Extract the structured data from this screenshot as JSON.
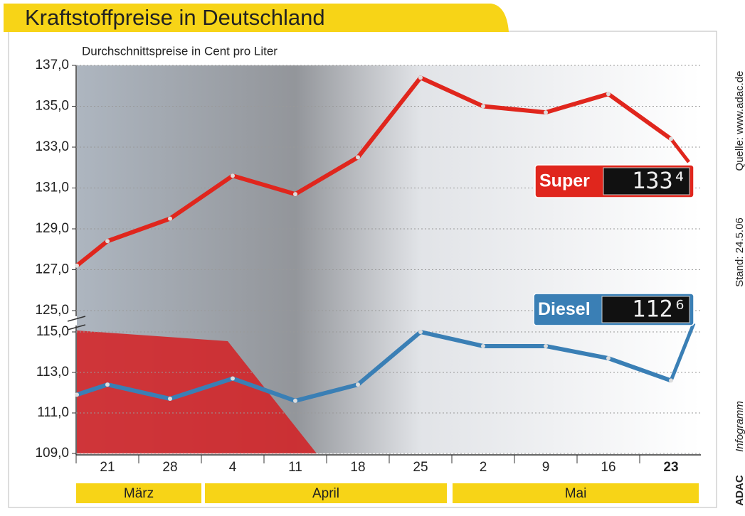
{
  "chart_data": {
    "type": "line",
    "title": "Kraftstoffpreise in Deutschland",
    "subtitle": "Durchschnittspreise in Cent pro Liter",
    "categories": [
      null,
      "21",
      "28",
      "4",
      "11",
      "18",
      "25",
      "2",
      "9",
      "16",
      "23"
    ],
    "x_groups": [
      "März",
      "April",
      "Mai"
    ],
    "series": [
      {
        "name": "Super",
        "color": "#e0261d",
        "values": [
          127.2,
          128.4,
          129.5,
          131.6,
          130.7,
          132.5,
          136.4,
          135.0,
          134.7,
          135.6,
          133.4
        ],
        "value_labels": [
          null,
          null,
          null,
          null,
          null,
          null,
          null,
          null,
          null,
          null,
          "133⁴"
        ]
      },
      {
        "name": "Diesel",
        "color": "#3a7fb5",
        "axis": "y2",
        "values": [
          111.9,
          112.4,
          111.7,
          112.7,
          111.6,
          112.4,
          115.0,
          114.3,
          114.3,
          113.7,
          112.6
        ],
        "value_labels": [
          null,
          null,
          null,
          null,
          null,
          null,
          null,
          null,
          null,
          null,
          "112⁶"
        ]
      }
    ],
    "ylim": [
      125,
      137
    ],
    "yticks": [
      {
        "value": 137,
        "label": "137,0"
      },
      {
        "value": 135,
        "label": "135,0"
      },
      {
        "value": 133,
        "label": "133,0"
      },
      {
        "value": 131,
        "label": "131,0"
      },
      {
        "value": 129,
        "label": "129,0"
      },
      {
        "value": 127,
        "label": "127,0"
      },
      {
        "value": 125,
        "label": "125,0"
      }
    ],
    "y2lim": [
      109,
      115
    ],
    "y2ticks": [
      {
        "value": 115,
        "label": "115,0"
      },
      {
        "value": 113,
        "label": "113,0"
      },
      {
        "value": 111,
        "label": "111,0"
      },
      {
        "value": 109,
        "label": "109,0"
      }
    ],
    "grid": true,
    "source": "Quelle: www.adac.de",
    "date_note": "Stand: 24.5.06",
    "brand": "ADAC",
    "brand_suffix": "Infogramm"
  }
}
